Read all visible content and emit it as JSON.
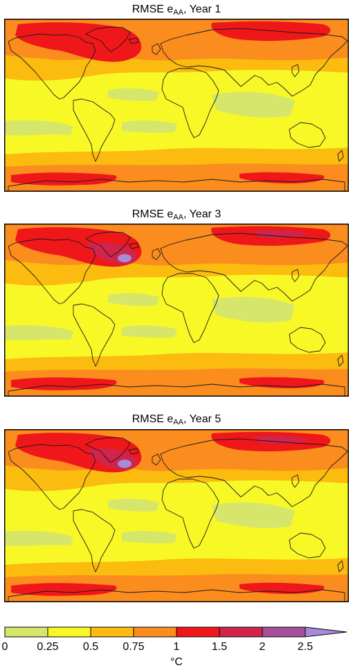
{
  "panels": [
    {
      "title_prefix": "RMSE e",
      "title_sub": "AA",
      "title_suffix": ", Year 1",
      "intensity": 0.75
    },
    {
      "title_prefix": "RMSE e",
      "title_sub": "AA",
      "title_suffix": ", Year 3",
      "intensity": 1.0
    },
    {
      "title_prefix": "RMSE e",
      "title_sub": "AA",
      "title_suffix": ", Year 5",
      "intensity": 1.0
    }
  ],
  "colorbar": {
    "ticks": [
      "0",
      "0.25",
      "0.5",
      "0.75",
      "1",
      "1.5",
      "2",
      "2.5"
    ],
    "unit": "°C",
    "colors": [
      "#d6e66a",
      "#f8f827",
      "#fbbb0f",
      "#fb8c1e",
      "#f0171a",
      "#d0244b",
      "#a6519a",
      "#a78ad9"
    ]
  }
}
